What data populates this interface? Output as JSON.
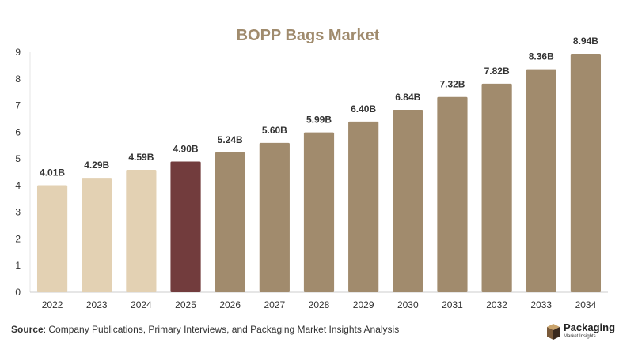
{
  "chart_data": {
    "type": "bar",
    "title": "BOPP Bags Market",
    "categories": [
      "2022",
      "2023",
      "2024",
      "2025",
      "2026",
      "2027",
      "2028",
      "2029",
      "2030",
      "2031",
      "2032",
      "2033",
      "2034"
    ],
    "values": [
      4.01,
      4.29,
      4.59,
      4.9,
      5.24,
      5.6,
      5.99,
      6.4,
      6.84,
      7.32,
      7.82,
      8.36,
      8.94
    ],
    "data_labels": [
      "4.01B",
      "4.29B",
      "4.59B",
      "4.90B",
      "5.24B",
      "5.60B",
      "5.99B",
      "6.40B",
      "6.84B",
      "7.32B",
      "7.82B",
      "8.36B",
      "8.94B"
    ],
    "y_ticks": [
      "0",
      "1",
      "2",
      "3",
      "4",
      "5",
      "6",
      "7",
      "8",
      "9"
    ],
    "ylim": [
      0,
      9
    ],
    "grid": false,
    "colors": {
      "historical": "#e3d1b3",
      "current": "#723c3d",
      "forecast": "#a18b6d",
      "title": "#a08b6d"
    },
    "bar_groups": [
      "historical",
      "historical",
      "historical",
      "current",
      "forecast",
      "forecast",
      "forecast",
      "forecast",
      "forecast",
      "forecast",
      "forecast",
      "forecast",
      "forecast"
    ]
  },
  "footer": {
    "source_label": "Source",
    "source_text": ": Company Publications, Primary Interviews, and Packaging Market Insights Analysis"
  },
  "logo": {
    "name": "Packaging",
    "tagline": "Market Insights",
    "icon": "box-logo-icon"
  }
}
